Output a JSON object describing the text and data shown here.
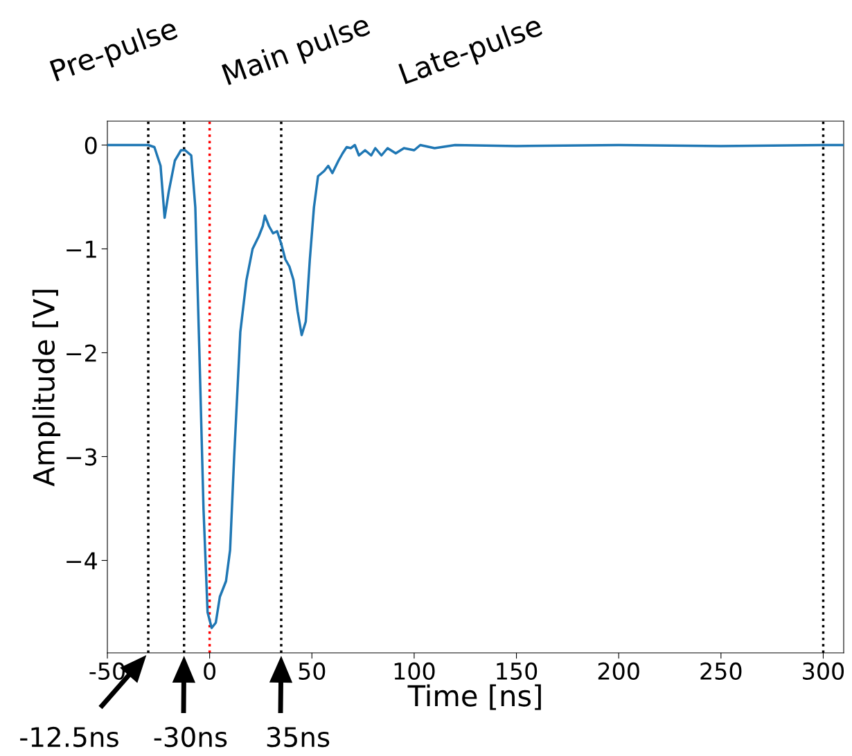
{
  "chart_data": {
    "type": "line",
    "xlabel": "Time [ns]",
    "ylabel": "Amplitude [V]",
    "x": [
      -50,
      -30,
      -27,
      -24,
      -22,
      -20,
      -17,
      -14,
      -12,
      -9,
      -7,
      -5,
      -3,
      -1,
      1,
      3,
      5,
      8,
      10,
      12,
      15,
      18,
      21,
      24,
      26,
      27,
      29,
      31,
      33,
      35,
      37,
      39,
      41,
      43,
      45,
      47,
      49,
      51,
      53,
      56,
      58,
      60,
      63,
      65,
      67,
      69,
      71,
      73,
      76,
      79,
      81,
      84,
      87,
      91,
      95,
      100,
      103,
      110,
      120,
      150,
      200,
      250,
      300,
      310
    ],
    "series": [
      {
        "color": "#1f77b4",
        "values": [
          0,
          0,
          -0.02,
          -0.2,
          -0.7,
          -0.45,
          -0.15,
          -0.05,
          -0.05,
          -0.1,
          -0.6,
          -2,
          -3.5,
          -4.5,
          -4.65,
          -4.6,
          -4.35,
          -4.2,
          -3.9,
          -3.0,
          -1.8,
          -1.3,
          -1.0,
          -0.88,
          -0.78,
          -0.68,
          -0.78,
          -0.85,
          -0.83,
          -0.95,
          -1.1,
          -1.17,
          -1.3,
          -1.6,
          -1.83,
          -1.7,
          -1.1,
          -0.6,
          -0.3,
          -0.25,
          -0.2,
          -0.27,
          -0.15,
          -0.08,
          -0.02,
          -0.03,
          0.0,
          -0.1,
          -0.05,
          -0.1,
          -0.03,
          -0.1,
          -0.03,
          -0.08,
          -0.03,
          -0.05,
          0.0,
          -0.03,
          0,
          -0.01,
          0,
          -0.01,
          0,
          0
        ]
      }
    ],
    "xlim": [
      -50,
      310
    ],
    "ylim": [
      -4.89,
      0.23
    ],
    "xticks": [
      -50,
      0,
      50,
      100,
      150,
      200,
      250,
      300
    ],
    "yticks": [
      0,
      -1,
      -2,
      -3,
      -4
    ],
    "grid": false,
    "legend": false,
    "line_style": "solid",
    "marker": "none",
    "ref_lines": [
      {
        "axis": "x",
        "value": -30,
        "color": "#000000",
        "line_style": "dotted"
      },
      {
        "axis": "x",
        "value": -12.5,
        "color": "#000000",
        "line_style": "dotted"
      },
      {
        "axis": "x",
        "value": 0,
        "color": "#ff0000",
        "line_style": "dotted"
      },
      {
        "axis": "x",
        "value": 35,
        "color": "#000000",
        "line_style": "dotted"
      },
      {
        "axis": "x",
        "value": 300,
        "color": "#000000",
        "line_style": "dotted"
      }
    ],
    "annotations": [
      {
        "text": "-12.5ns",
        "x": -30,
        "y": -4.89
      },
      {
        "text": "-30ns",
        "x": -12.5,
        "y": -4.89
      },
      {
        "text": "35ns",
        "x": 35,
        "y": -4.89
      },
      "Pre-pulse",
      "Main pulse",
      "Late-pulse"
    ]
  }
}
